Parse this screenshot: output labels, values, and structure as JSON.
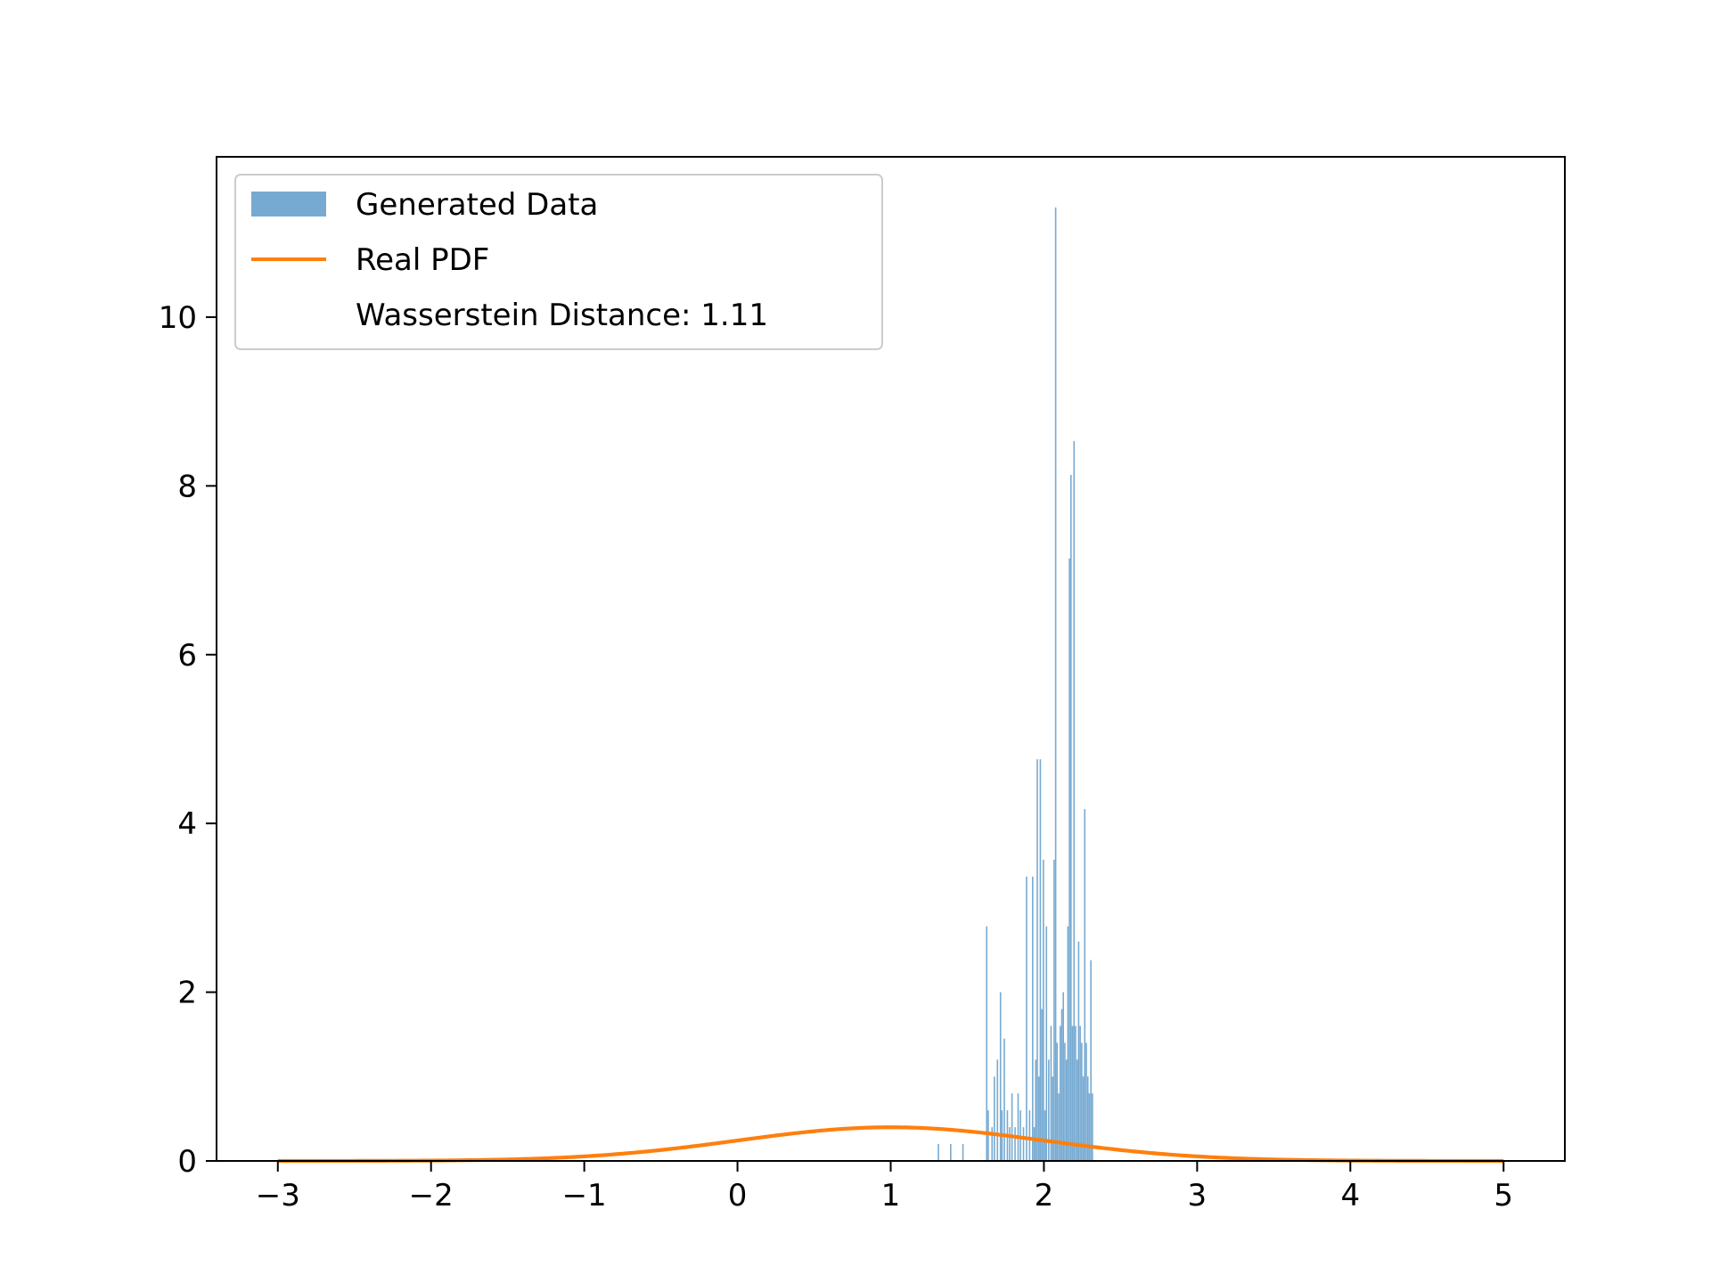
{
  "chart_data": {
    "type": "bar",
    "title": "",
    "xlabel": "",
    "ylabel": "",
    "xlim": [
      -3.4,
      5.4
    ],
    "ylim": [
      0,
      11.9
    ],
    "x_ticks": [
      -3,
      -2,
      -1,
      0,
      1,
      2,
      3,
      4,
      5
    ],
    "y_ticks": [
      0,
      2,
      4,
      6,
      8,
      10
    ],
    "grid": false,
    "legend_placement": "top-left",
    "legend": {
      "items": [
        {
          "label": "Generated Data",
          "kind": "patch",
          "color": "#77aad2"
        },
        {
          "label": "Real PDF",
          "kind": "line",
          "color": "#ff7f0e"
        },
        {
          "label": "Wasserstein Distance: 1.11",
          "kind": "none",
          "color": ""
        }
      ]
    },
    "series": [
      {
        "name": "Generated Data",
        "type": "histogram",
        "color": "#77aad2",
        "bin_width": 0.006,
        "bars": [
          [
            1.31,
            0.2
          ],
          [
            1.39,
            0.2
          ],
          [
            1.47,
            0.2
          ],
          [
            1.625,
            2.78
          ],
          [
            1.635,
            0.6
          ],
          [
            1.66,
            0.4
          ],
          [
            1.675,
            1.0
          ],
          [
            1.695,
            1.2
          ],
          [
            1.715,
            2.0
          ],
          [
            1.725,
            0.6
          ],
          [
            1.74,
            1.45
          ],
          [
            1.76,
            0.6
          ],
          [
            1.775,
            0.4
          ],
          [
            1.79,
            0.8
          ],
          [
            1.81,
            0.4
          ],
          [
            1.83,
            0.8
          ],
          [
            1.845,
            0.6
          ],
          [
            1.865,
            0.4
          ],
          [
            1.885,
            3.37
          ],
          [
            1.905,
            0.6
          ],
          [
            1.925,
            3.37
          ],
          [
            1.935,
            0.4
          ],
          [
            1.945,
            1.2
          ],
          [
            1.955,
            4.76
          ],
          [
            1.965,
            1.0
          ],
          [
            1.975,
            4.76
          ],
          [
            1.985,
            1.8
          ],
          [
            1.995,
            3.57
          ],
          [
            2.005,
            0.6
          ],
          [
            2.015,
            2.78
          ],
          [
            2.03,
            1.2
          ],
          [
            2.045,
            1.6
          ],
          [
            2.055,
            1.0
          ],
          [
            2.065,
            3.57
          ],
          [
            2.075,
            11.3
          ],
          [
            2.085,
            1.4
          ],
          [
            2.095,
            0.8
          ],
          [
            2.105,
            1.6
          ],
          [
            2.115,
            1.8
          ],
          [
            2.125,
            2.0
          ],
          [
            2.135,
            1.4
          ],
          [
            2.145,
            1.2
          ],
          [
            2.155,
            2.78
          ],
          [
            2.165,
            7.14
          ],
          [
            2.175,
            8.13
          ],
          [
            2.185,
            1.6
          ],
          [
            2.195,
            8.53
          ],
          [
            2.205,
            1.6
          ],
          [
            2.215,
            1.2
          ],
          [
            2.225,
            2.6
          ],
          [
            2.235,
            1.6
          ],
          [
            2.245,
            1.4
          ],
          [
            2.255,
            1.0
          ],
          [
            2.265,
            4.17
          ],
          [
            2.275,
            1.4
          ],
          [
            2.285,
            1.0
          ],
          [
            2.295,
            0.8
          ],
          [
            2.305,
            2.38
          ],
          [
            2.315,
            0.8
          ]
        ]
      },
      {
        "name": "Real PDF",
        "type": "line",
        "color": "#ff7f0e",
        "distribution": {
          "kind": "normal",
          "mean": 1,
          "std": 1
        },
        "x_range": [
          -3,
          5
        ]
      }
    ]
  }
}
